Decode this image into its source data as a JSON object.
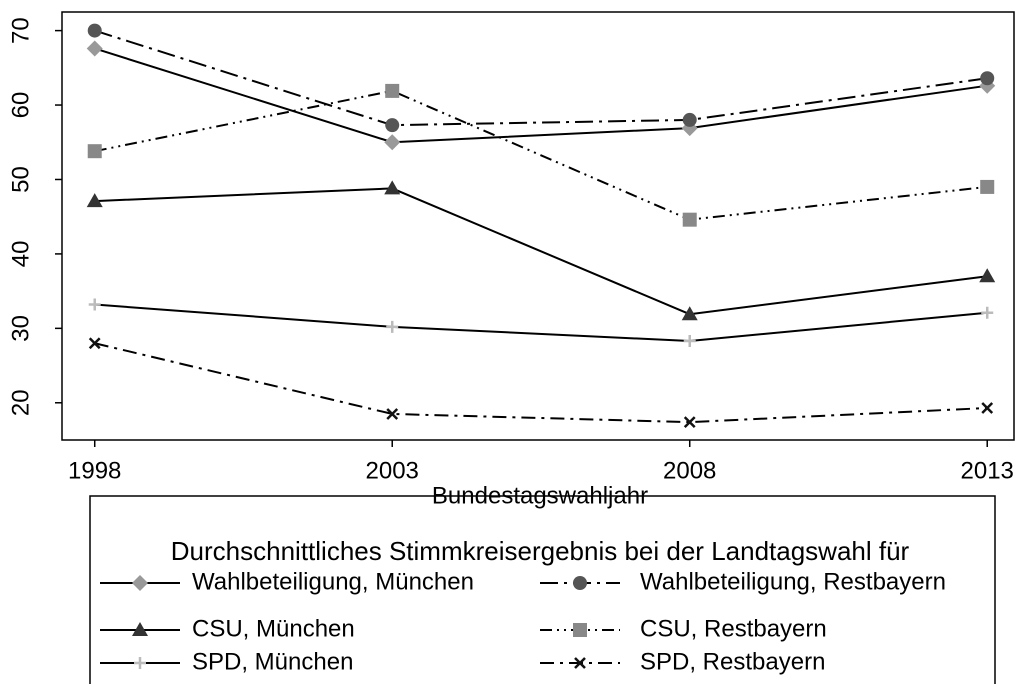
{
  "chart_data": {
    "type": "line",
    "x_label": "Bundestagswahljahr",
    "legend_title": "Durchschnittliches Stimmkreisergebnis bei der Landtagswahl für",
    "x": [
      1998,
      2003,
      2008,
      2013
    ],
    "xlim": [
      1997.45,
      2013.45
    ],
    "xticks": [
      1998,
      2003,
      2008,
      2013
    ],
    "ylim": [
      15,
      72.5
    ],
    "yticks": [
      20,
      30,
      40,
      50,
      60,
      70
    ],
    "grid": false,
    "series": [
      {
        "name": "Wahlbeteiligung, München",
        "color": "#999999",
        "marker": "diamond",
        "line_style": "solid",
        "values": [
          67.6,
          55.0,
          56.9,
          62.6
        ]
      },
      {
        "name": "Wahlbeteiligung, Restbayern",
        "color": "#555555",
        "marker": "circle",
        "line_style": "long-dash-dot",
        "values": [
          70.0,
          57.3,
          58.0,
          63.6
        ]
      },
      {
        "name": "CSU, München",
        "color": "#333333",
        "marker": "triangle",
        "line_style": "solid",
        "values": [
          47.1,
          48.8,
          31.9,
          37.0
        ]
      },
      {
        "name": "CSU, Restbayern",
        "color": "#888888",
        "marker": "square",
        "line_style": "dash-dot-dot",
        "values": [
          53.8,
          61.9,
          44.6,
          49.0
        ]
      },
      {
        "name": "SPD, München",
        "color": "#bbbbbb",
        "marker": "plus",
        "line_style": "solid",
        "values": [
          33.2,
          30.2,
          28.3,
          32.1
        ]
      },
      {
        "name": "SPD, Restbayern",
        "color": "#111111",
        "marker": "x",
        "line_style": "dash-dot",
        "values": [
          28.0,
          18.5,
          17.4,
          19.3
        ]
      }
    ]
  }
}
